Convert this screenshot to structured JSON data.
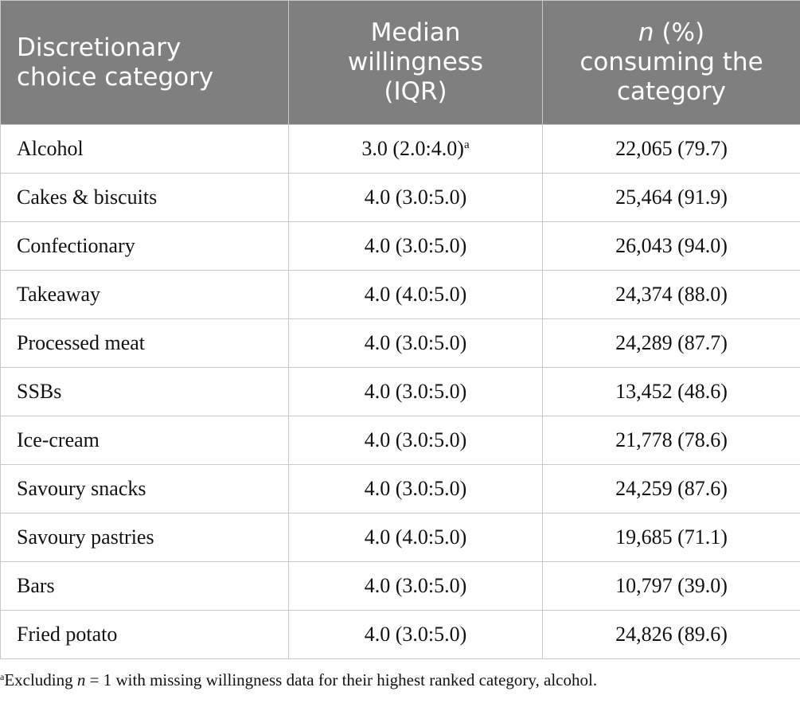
{
  "table": {
    "header": [
      {
        "lines": [
          "Discretionary",
          "choice category"
        ]
      },
      {
        "lines": [
          "Median",
          "willingness",
          "(IQR)"
        ]
      },
      {
        "italic": "n",
        "lines": [
          " (%)",
          "consuming the",
          "category"
        ]
      }
    ],
    "rows": [
      [
        {
          "text": "Alcohol"
        },
        {
          "text": "3.0 (2.0:4.0)",
          "sup": "a"
        },
        {
          "text": "22,065 (79.7)"
        }
      ],
      [
        {
          "text": "Cakes & biscuits"
        },
        {
          "text": "4.0 (3.0:5.0)"
        },
        {
          "text": "25,464 (91.9)"
        }
      ],
      [
        {
          "text": "Confectionary"
        },
        {
          "text": "4.0 (3.0:5.0)"
        },
        {
          "text": "26,043 (94.0)"
        }
      ],
      [
        {
          "text": "Takeaway"
        },
        {
          "text": "4.0 (4.0:5.0)"
        },
        {
          "text": "24,374 (88.0)"
        }
      ],
      [
        {
          "text": "Processed meat"
        },
        {
          "text": "4.0 (3.0:5.0)"
        },
        {
          "text": "24,289 (87.7)"
        }
      ],
      [
        {
          "text": "SSBs"
        },
        {
          "text": "4.0 (3.0:5.0)"
        },
        {
          "text": "13,452 (48.6)"
        }
      ],
      [
        {
          "text": "Ice-cream"
        },
        {
          "text": "4.0 (3.0:5.0)"
        },
        {
          "text": "21,778 (78.6)"
        }
      ],
      [
        {
          "text": "Savoury snacks"
        },
        {
          "text": "4.0 (3.0:5.0)"
        },
        {
          "text": "24,259 (87.6)"
        }
      ],
      [
        {
          "text": "Savoury pastries"
        },
        {
          "text": "4.0 (4.0:5.0)"
        },
        {
          "text": "19,685 (71.1)"
        }
      ],
      [
        {
          "text": "Bars"
        },
        {
          "text": "4.0 (3.0:5.0)"
        },
        {
          "text": "10,797 (39.0)"
        }
      ],
      [
        {
          "text": "Fried potato"
        },
        {
          "text": "4.0 (3.0:5.0)"
        },
        {
          "text": "24,826 (89.6)"
        }
      ]
    ]
  },
  "footnote": {
    "sup": "a",
    "before": "Excluding ",
    "italic": "n",
    "after": " = 1 with missing willingness data for their highest ranked category, alcohol."
  }
}
